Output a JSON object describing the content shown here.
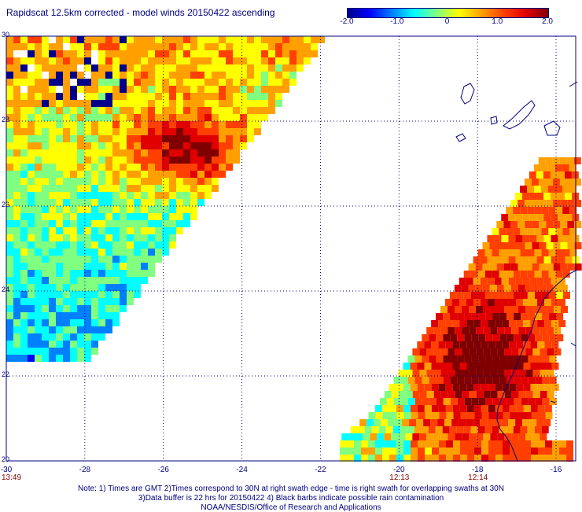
{
  "title": "Rapidscat 12.5km corrected - model winds 20150422 ascending",
  "colorbar": {
    "ticks": [
      {
        "value": -2.0,
        "label": "-2.0"
      },
      {
        "value": -1.0,
        "label": "-1.0"
      },
      {
        "value": 0,
        "label": "0"
      },
      {
        "value": 1.0,
        "label": "1.0"
      },
      {
        "value": 2.0,
        "label": "2.0"
      }
    ],
    "range": [
      -2.0,
      2.0
    ],
    "colors": [
      "#00008b",
      "#0000ff",
      "#0080ff",
      "#00ffff",
      "#80ff80",
      "#ffff00",
      "#ffa000",
      "#ff4000",
      "#e00000",
      "#800000"
    ]
  },
  "map": {
    "lon_range": [
      -30,
      -15.5
    ],
    "lat_range": [
      20,
      30
    ],
    "x_ticks": [
      {
        "value": -30,
        "label": "-30"
      },
      {
        "value": -28,
        "label": "-28"
      },
      {
        "value": -26,
        "label": "-26"
      },
      {
        "value": -24,
        "label": "-24"
      },
      {
        "value": -22,
        "label": "-22"
      },
      {
        "value": -20,
        "label": "-20"
      },
      {
        "value": -18,
        "label": "-18"
      },
      {
        "value": -16,
        "label": "-16"
      }
    ],
    "y_ticks": [
      {
        "value": 30,
        "label": "30"
      },
      {
        "value": 28,
        "label": "28"
      },
      {
        "value": 26,
        "label": "26"
      },
      {
        "value": 24,
        "label": "24"
      },
      {
        "value": 22,
        "label": "22"
      },
      {
        "value": 20,
        "label": "20"
      }
    ],
    "grid": "dotted",
    "gridline_color": "#000080",
    "coastline_color": "#000080"
  },
  "times": [
    {
      "label": "13:49",
      "lon": -30
    },
    {
      "label": "12:13",
      "lon": -20
    },
    {
      "label": "12:14",
      "lon": -18
    }
  ],
  "notes": {
    "line1": "Note: 1) Times are GMT 2)Times correspond to 30N at right swath edge - time is right swath for overlapping swaths at 30N",
    "line2": "3)Data buffer is 22 hrs for 20150422 4) Black barbs indicate possible rain contamination",
    "line3": "NOAA/NESDIS/Office of Research and Applications"
  }
}
